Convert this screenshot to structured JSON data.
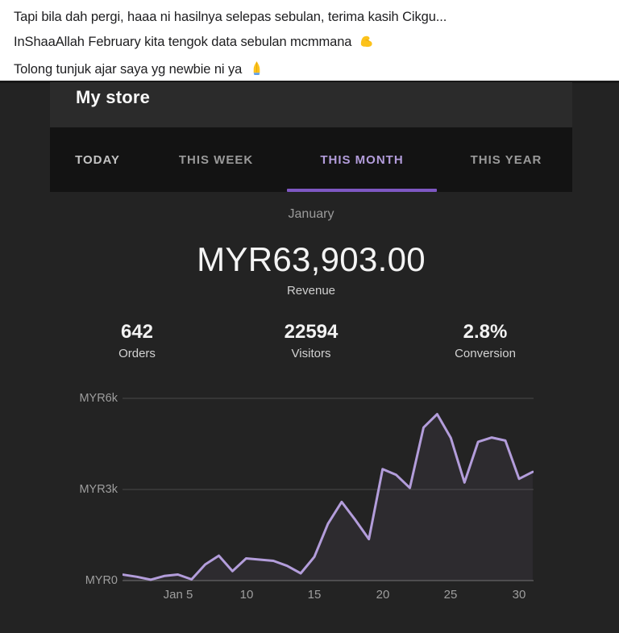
{
  "post": {
    "lines": [
      {
        "text": "Tapi bila dah pergi, haaa ni hasilnya selepas sebulan, terima kasih Cikgu...",
        "emoji": null
      },
      {
        "text": "InShaaAllah February kita tengok data sebulan mcmmana",
        "emoji": "flexed-biceps"
      },
      {
        "text": "Tolong tunjuk ajar saya yg newbie ni ya",
        "emoji": "folded-hands"
      }
    ]
  },
  "store": {
    "title": "My store",
    "tabs": [
      {
        "label": "TODAY",
        "active": false
      },
      {
        "label": "THIS WEEK",
        "active": false
      },
      {
        "label": "THIS MONTH",
        "active": true
      },
      {
        "label": "THIS YEAR",
        "active": false
      }
    ],
    "period_label": "January",
    "revenue": {
      "value": "MYR63,903.00",
      "label": "Revenue"
    },
    "stats": [
      {
        "value": "642",
        "label": "Orders"
      },
      {
        "value": "22594",
        "label": "Visitors"
      },
      {
        "value": "2.8%",
        "label": "Conversion"
      }
    ]
  },
  "chart_data": {
    "type": "line",
    "series_name": "Revenue",
    "currency": "MYR",
    "x": [
      1,
      2,
      3,
      4,
      5,
      6,
      7,
      8,
      9,
      10,
      11,
      12,
      13,
      14,
      15,
      16,
      17,
      18,
      19,
      20,
      21,
      22,
      23,
      24,
      25,
      26,
      27,
      28,
      29,
      30,
      31
    ],
    "values": [
      195,
      125,
      30,
      150,
      200,
      40,
      530,
      820,
      310,
      730,
      690,
      650,
      485,
      240,
      780,
      1870,
      2590,
      2000,
      1365,
      3670,
      3480,
      3050,
      5040,
      5480,
      4700,
      3230,
      4570,
      4710,
      4610,
      3350,
      3580
    ],
    "x_tick_labels": [
      "Jan 5",
      "10",
      "15",
      "20",
      "25",
      "30"
    ],
    "x_tick_days": [
      5,
      10,
      15,
      20,
      25,
      30
    ],
    "y_ticks": [
      {
        "label": "MYR0",
        "value": 0
      },
      {
        "label": "MYR3k",
        "value": 3000
      },
      {
        "label": "MYR6k",
        "value": 6000
      }
    ],
    "ylim": [
      0,
      6240
    ],
    "grid": true,
    "legend": false,
    "line_color": "#b39ddb",
    "fill_color": "rgba(179,157,219,0.07)"
  },
  "colors": {
    "accent_purple": "#b39ddb",
    "underline_purple": "#7e57c2",
    "panel_bg": "#232323",
    "header_bg": "#2b2b2b",
    "tabbar_bg": "#131313"
  }
}
